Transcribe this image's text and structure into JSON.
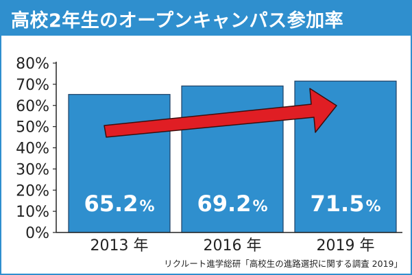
{
  "title": "高校2年生のオープンキャンパス参加率",
  "source": "リクルート進学総研「高校生の進路選択に関する調査 2019」",
  "colors": {
    "bar": "#2f8fce",
    "bar_edge": "#1e3f63",
    "arrow": "#e01e24",
    "arrow_edge": "#3a0e0e",
    "title_bg": "#2f8fce"
  },
  "chart_data": {
    "type": "bar",
    "categories": [
      "2013 年",
      "2016 年",
      "2019 年"
    ],
    "values": [
      65.2,
      69.2,
      71.5
    ],
    "data_labels": [
      {
        "number": "65.2",
        "unit": "%"
      },
      {
        "number": "69.2",
        "unit": "%"
      },
      {
        "number": "71.5",
        "unit": "%"
      }
    ],
    "ylim": [
      0,
      80
    ],
    "yticks": [
      "0%",
      "10%",
      "20%",
      "30%",
      "40%",
      "50%",
      "60%",
      "70%",
      "80%"
    ],
    "grid": false,
    "trend_arrow": true
  }
}
